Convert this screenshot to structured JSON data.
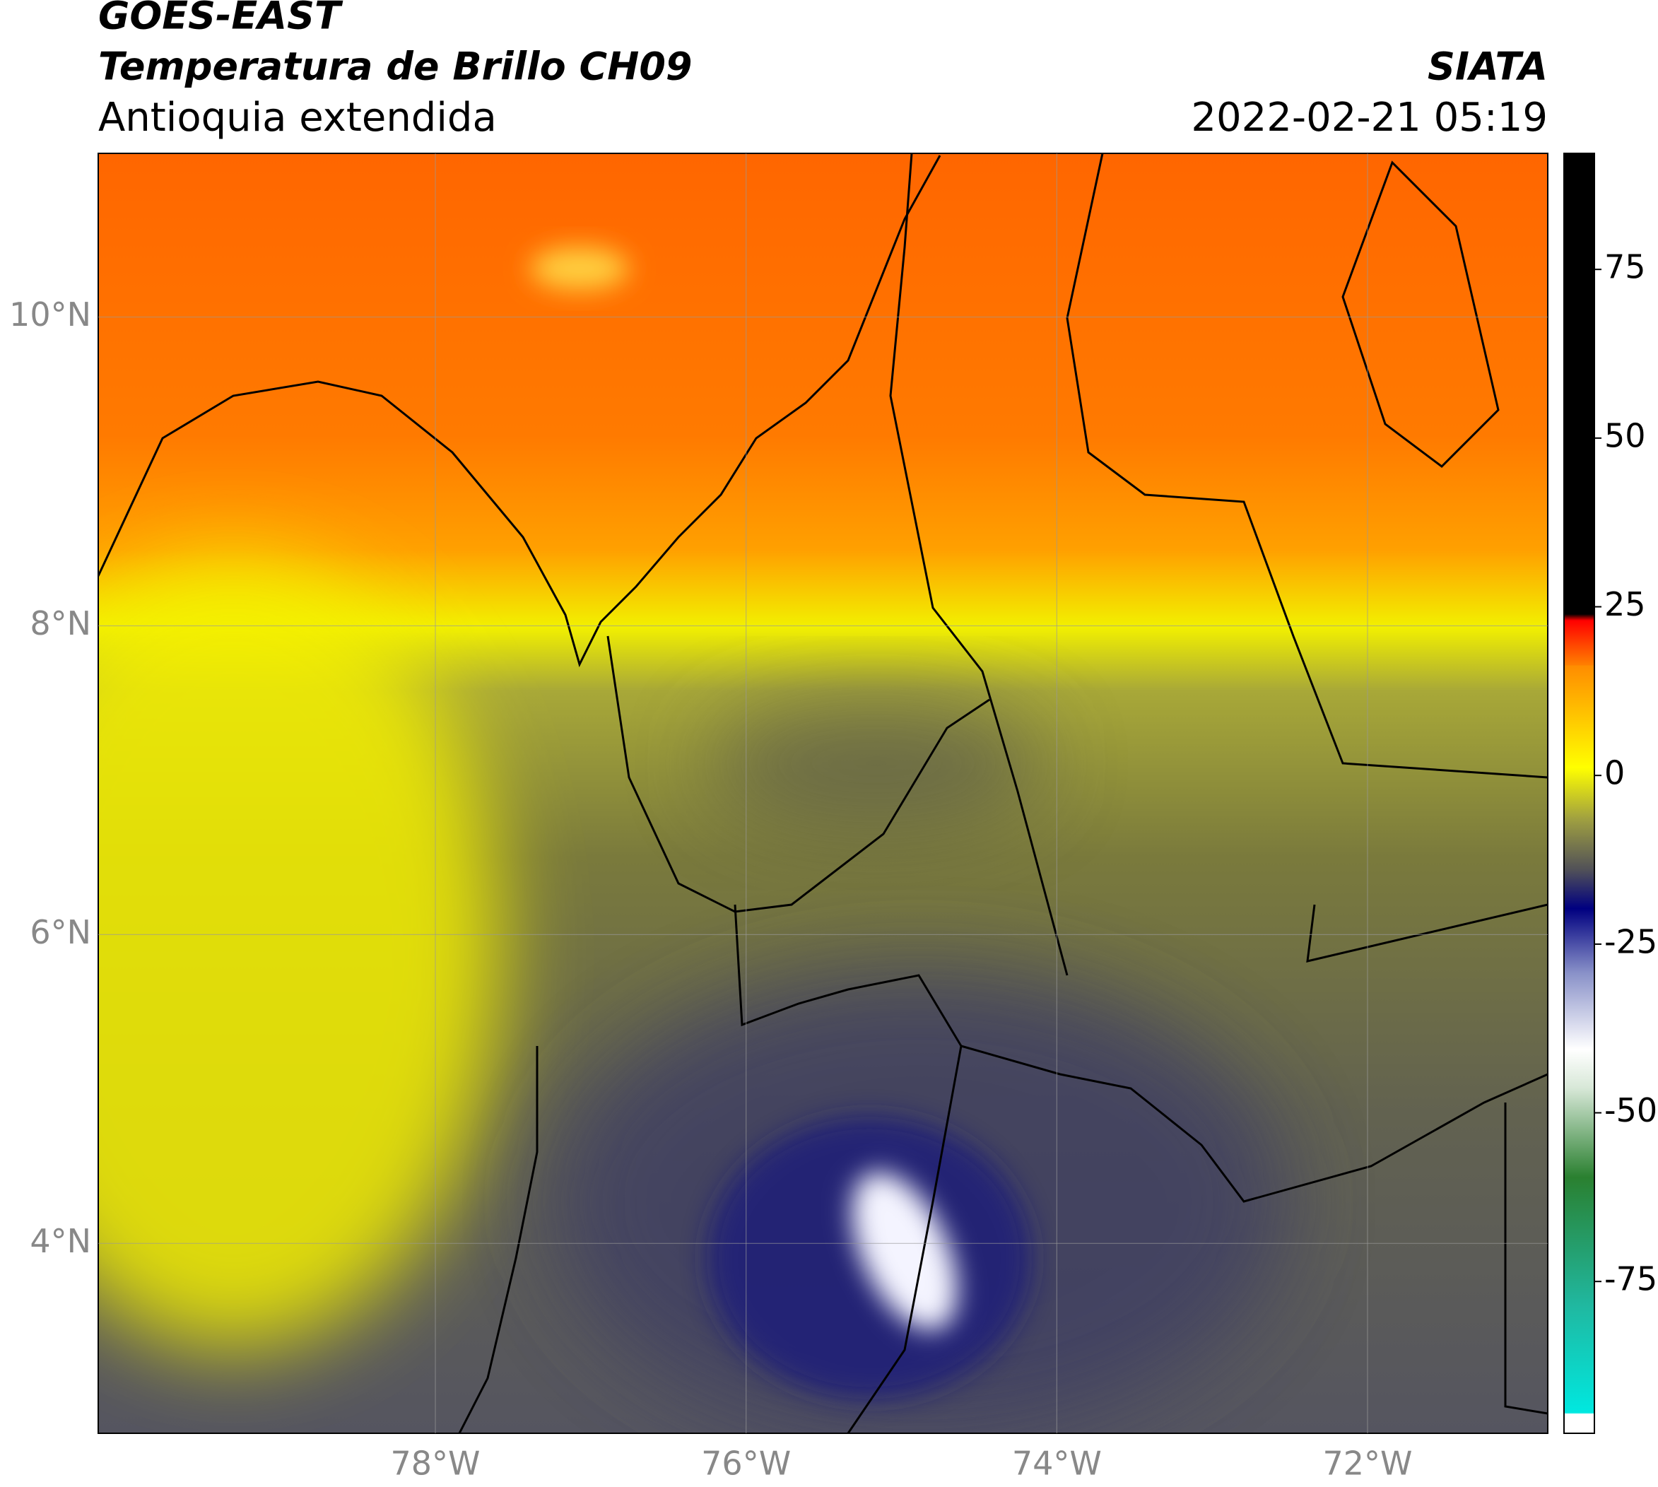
{
  "header": {
    "title": "GOES-EAST",
    "subtitle": "Temperatura de Brillo CH09",
    "region": "Antioquia extendida",
    "agency": "SIATA",
    "datetime": "2022-02-21 05:19"
  },
  "map": {
    "xlim": [
      -80.17,
      -70.84
    ],
    "ylim": [
      2.77,
      11.06
    ],
    "xticks": [
      {
        "value": -78,
        "label": "78°W"
      },
      {
        "value": -76,
        "label": "76°W"
      },
      {
        "value": -74,
        "label": "74°W"
      },
      {
        "value": -72,
        "label": "72°W"
      }
    ],
    "yticks": [
      {
        "value": 4,
        "label": "4°N"
      },
      {
        "value": 6,
        "label": "6°N"
      },
      {
        "value": 8,
        "label": "8°N"
      },
      {
        "value": 10,
        "label": "10°N"
      }
    ],
    "grid": true
  },
  "colorbar": {
    "clim": [
      -97.5,
      92.2
    ],
    "ticks": [
      -75,
      -50,
      -25,
      0,
      25,
      50,
      75
    ]
  }
}
